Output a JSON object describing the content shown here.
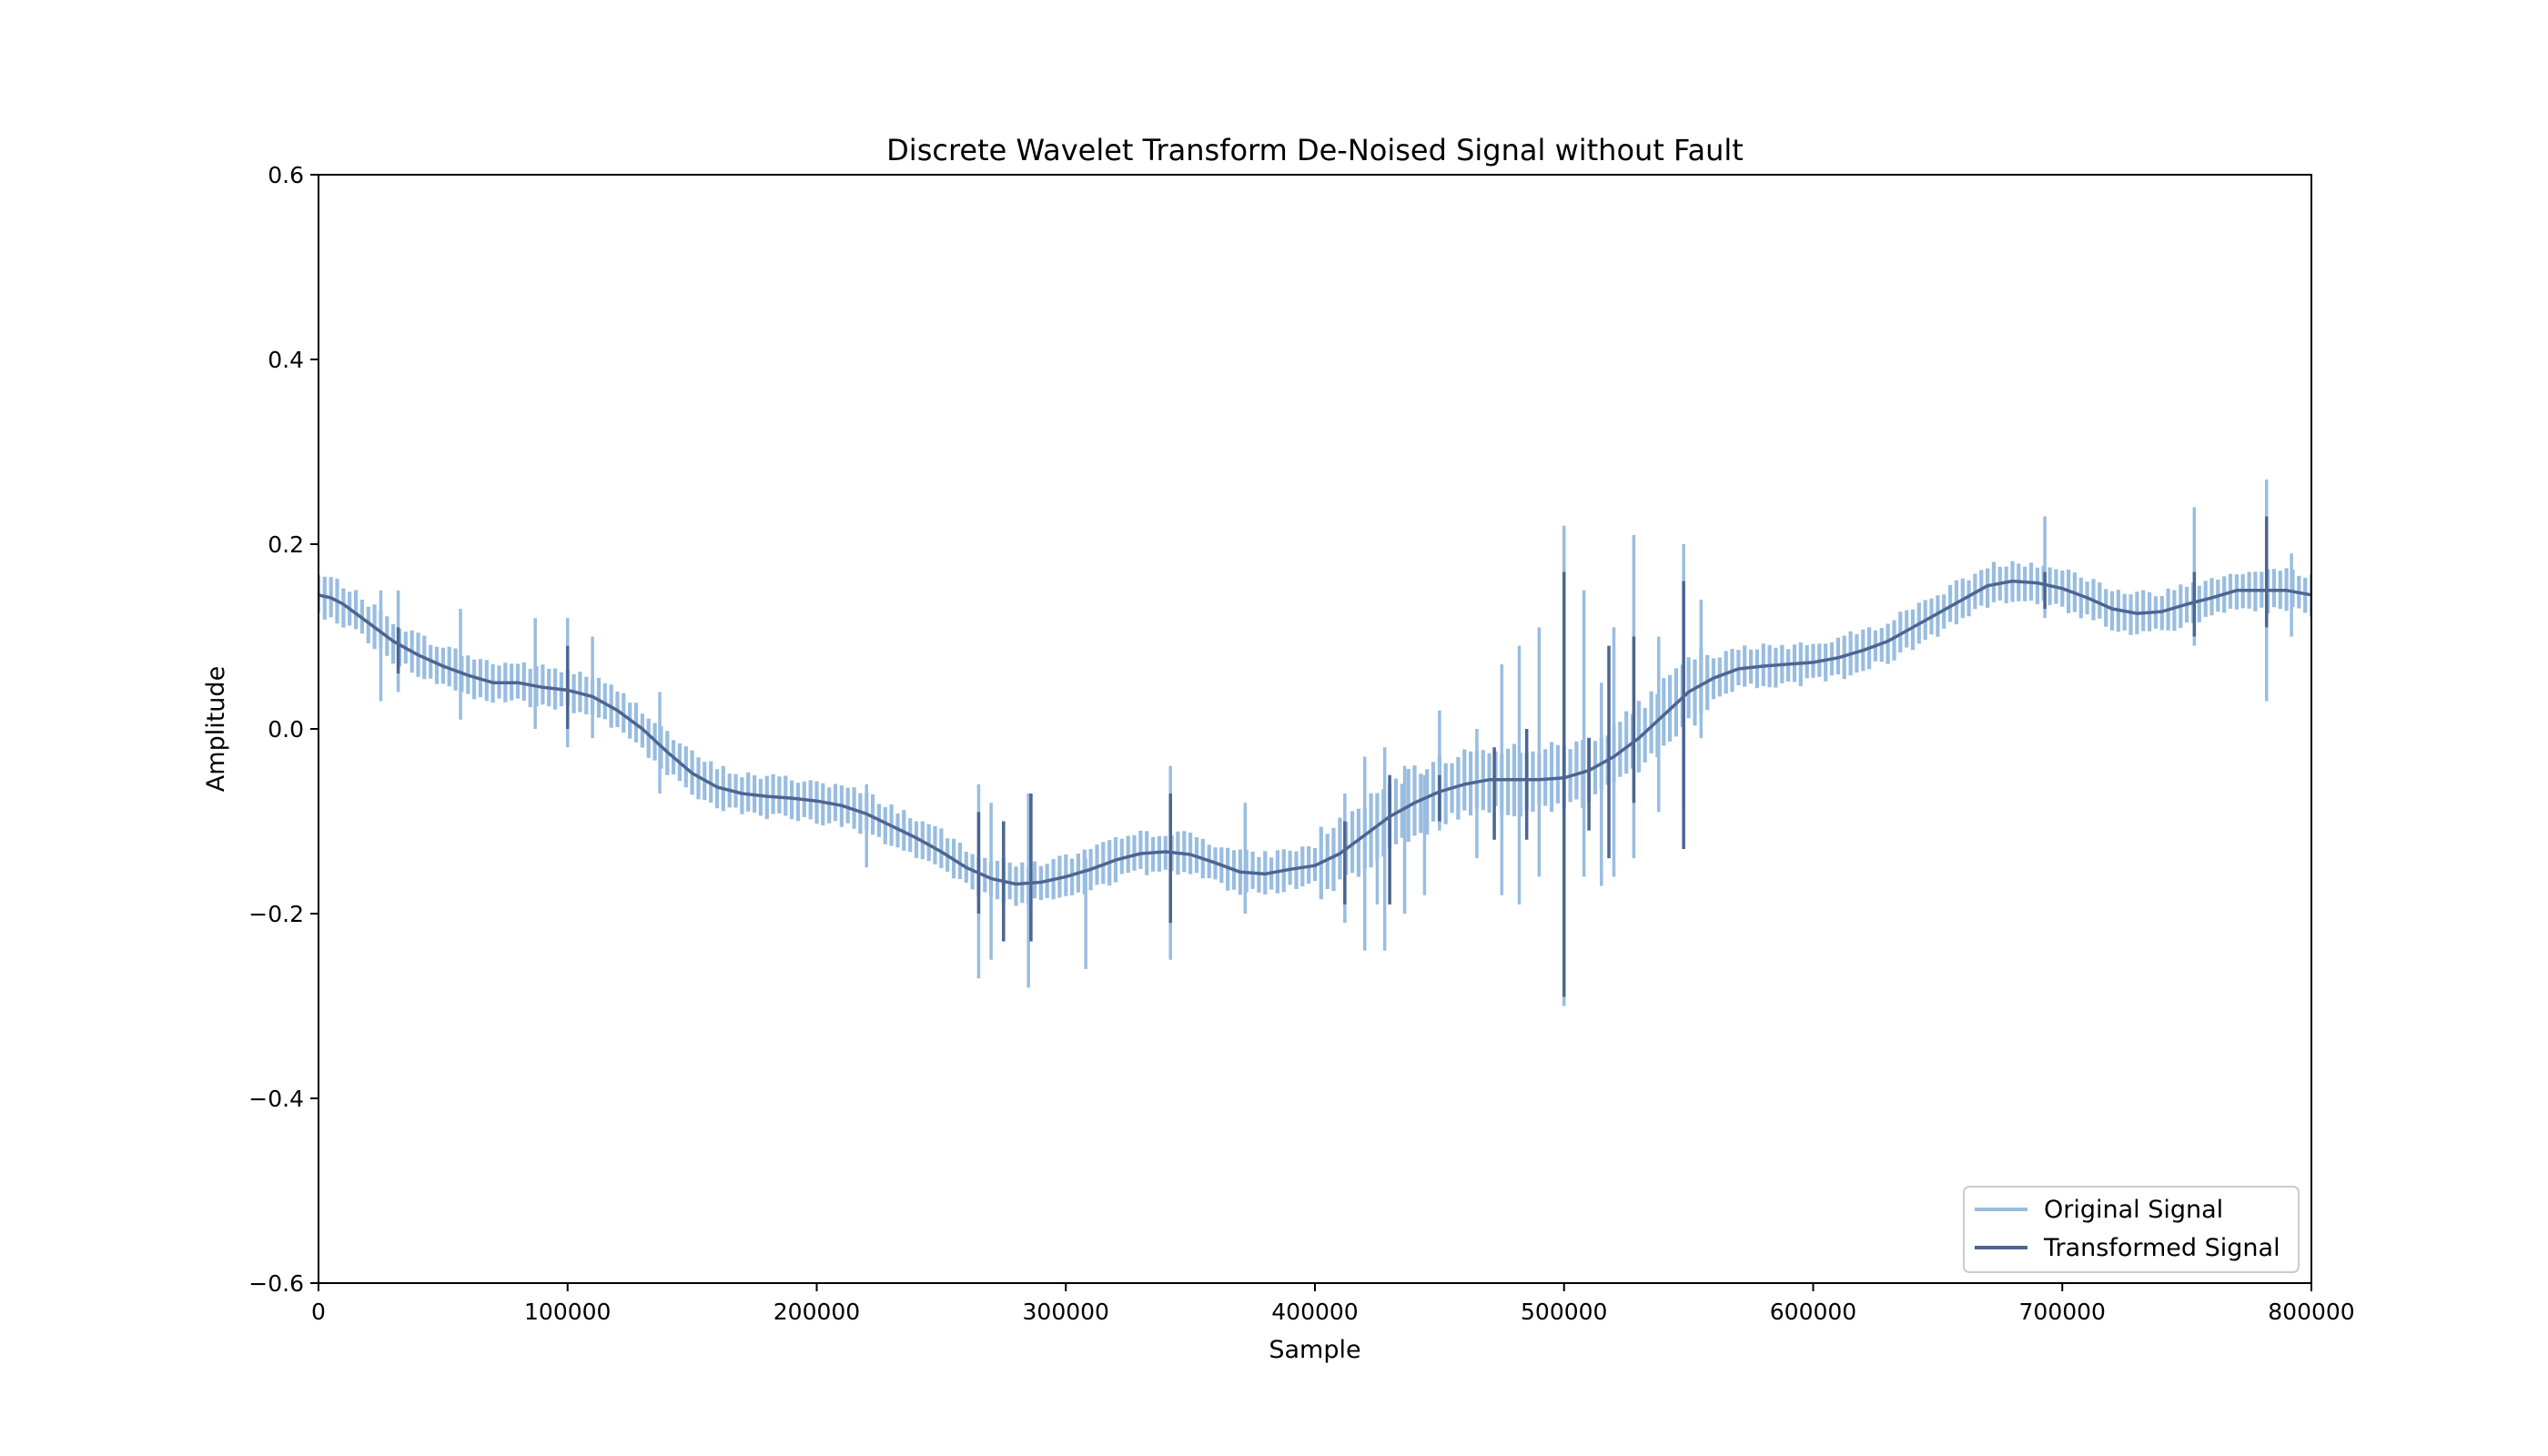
{
  "chart_data": {
    "type": "line",
    "title": "Discrete Wavelet Transform De-Noised Signal without Fault",
    "xlabel": "Sample",
    "ylabel": "Amplitude",
    "xlim": [
      0,
      800000
    ],
    "ylim": [
      -0.6,
      0.6
    ],
    "xticks": [
      0,
      100000,
      200000,
      300000,
      400000,
      500000,
      600000,
      700000,
      800000
    ],
    "xtick_labels": [
      "0",
      "100000",
      "200000",
      "300000",
      "400000",
      "500000",
      "600000",
      "700000",
      "800000"
    ],
    "yticks": [
      -0.6,
      -0.4,
      -0.2,
      0.0,
      0.2,
      0.4,
      0.6
    ],
    "ytick_labels": [
      "−0.6",
      "−0.4",
      "−0.2",
      "0.0",
      "0.2",
      "0.4",
      "0.6"
    ],
    "grid": false,
    "legend_position": "bottom-right",
    "series": [
      {
        "name": "Original Signal",
        "color": "#99bde0",
        "band_halfwidth": 0.022,
        "envelope_x": [
          0,
          20000,
          40000,
          60000,
          80000,
          100000,
          120000,
          140000,
          160000,
          180000,
          200000,
          220000,
          240000,
          260000,
          280000,
          300000,
          320000,
          340000,
          360000,
          380000,
          400000,
          420000,
          440000,
          460000,
          480000,
          500000,
          520000,
          540000,
          560000,
          580000,
          600000,
          620000,
          640000,
          660000,
          680000,
          700000,
          720000,
          740000,
          760000,
          780000,
          800000
        ],
        "spikes": [
          {
            "x": 25000,
            "min": 0.03,
            "max": 0.15
          },
          {
            "x": 32000,
            "min": 0.04,
            "max": 0.15
          },
          {
            "x": 57000,
            "min": 0.01,
            "max": 0.13
          },
          {
            "x": 87000,
            "min": 0.0,
            "max": 0.12
          },
          {
            "x": 100000,
            "min": -0.02,
            "max": 0.12
          },
          {
            "x": 110000,
            "min": -0.01,
            "max": 0.1
          },
          {
            "x": 137000,
            "min": -0.07,
            "max": 0.04
          },
          {
            "x": 220000,
            "min": -0.15,
            "max": -0.06
          },
          {
            "x": 265000,
            "min": -0.27,
            "max": -0.06
          },
          {
            "x": 270000,
            "min": -0.25,
            "max": -0.08
          },
          {
            "x": 285000,
            "min": -0.28,
            "max": -0.07
          },
          {
            "x": 308000,
            "min": -0.26,
            "max": -0.14
          },
          {
            "x": 342000,
            "min": -0.25,
            "max": -0.04
          },
          {
            "x": 372000,
            "min": -0.2,
            "max": -0.08
          },
          {
            "x": 412000,
            "min": -0.21,
            "max": -0.07
          },
          {
            "x": 420000,
            "min": -0.24,
            "max": -0.03
          },
          {
            "x": 425000,
            "min": -0.19,
            "max": -0.08
          },
          {
            "x": 428000,
            "min": -0.24,
            "max": -0.02
          },
          {
            "x": 436000,
            "min": -0.2,
            "max": -0.04
          },
          {
            "x": 444000,
            "min": -0.18,
            "max": -0.05
          },
          {
            "x": 450000,
            "min": -0.11,
            "max": 0.02
          },
          {
            "x": 465000,
            "min": -0.14,
            "max": 0.0
          },
          {
            "x": 475000,
            "min": -0.18,
            "max": 0.07
          },
          {
            "x": 482000,
            "min": -0.19,
            "max": 0.09
          },
          {
            "x": 490000,
            "min": -0.16,
            "max": 0.11
          },
          {
            "x": 500000,
            "min": -0.3,
            "max": 0.22
          },
          {
            "x": 508000,
            "min": -0.16,
            "max": 0.15
          },
          {
            "x": 515000,
            "min": -0.17,
            "max": 0.05
          },
          {
            "x": 520000,
            "min": -0.16,
            "max": 0.11
          },
          {
            "x": 528000,
            "min": -0.14,
            "max": 0.21
          },
          {
            "x": 538000,
            "min": -0.09,
            "max": 0.1
          },
          {
            "x": 548000,
            "min": -0.09,
            "max": 0.2
          },
          {
            "x": 555000,
            "min": -0.01,
            "max": 0.14
          },
          {
            "x": 693000,
            "min": 0.12,
            "max": 0.23
          },
          {
            "x": 753000,
            "min": 0.09,
            "max": 0.24
          },
          {
            "x": 782000,
            "min": 0.03,
            "max": 0.27
          },
          {
            "x": 792000,
            "min": 0.1,
            "max": 0.19
          }
        ]
      },
      {
        "name": "Transformed Signal",
        "color": "#4c6591",
        "x": [
          0,
          5000,
          10000,
          20000,
          30000,
          40000,
          50000,
          60000,
          70000,
          80000,
          90000,
          100000,
          110000,
          120000,
          130000,
          140000,
          150000,
          160000,
          170000,
          180000,
          190000,
          200000,
          210000,
          220000,
          230000,
          240000,
          250000,
          260000,
          270000,
          280000,
          290000,
          300000,
          310000,
          320000,
          330000,
          340000,
          350000,
          360000,
          370000,
          380000,
          390000,
          400000,
          410000,
          420000,
          430000,
          440000,
          450000,
          460000,
          470000,
          480000,
          490000,
          500000,
          510000,
          520000,
          530000,
          540000,
          550000,
          560000,
          570000,
          580000,
          590000,
          600000,
          610000,
          620000,
          630000,
          640000,
          650000,
          660000,
          670000,
          680000,
          690000,
          700000,
          710000,
          720000,
          730000,
          740000,
          750000,
          760000,
          770000,
          780000,
          790000,
          800000
        ],
        "y": [
          0.145,
          0.142,
          0.135,
          0.115,
          0.095,
          0.08,
          0.068,
          0.058,
          0.05,
          0.05,
          0.045,
          0.042,
          0.035,
          0.02,
          0.0,
          -0.025,
          -0.048,
          -0.063,
          -0.07,
          -0.073,
          -0.075,
          -0.078,
          -0.083,
          -0.092,
          -0.105,
          -0.118,
          -0.133,
          -0.15,
          -0.162,
          -0.168,
          -0.166,
          -0.16,
          -0.152,
          -0.142,
          -0.135,
          -0.133,
          -0.136,
          -0.145,
          -0.155,
          -0.157,
          -0.152,
          -0.148,
          -0.135,
          -0.115,
          -0.095,
          -0.08,
          -0.068,
          -0.06,
          -0.055,
          -0.055,
          -0.055,
          -0.053,
          -0.045,
          -0.03,
          -0.01,
          0.015,
          0.04,
          0.055,
          0.065,
          0.068,
          0.07,
          0.072,
          0.077,
          0.085,
          0.095,
          0.11,
          0.125,
          0.14,
          0.155,
          0.16,
          0.158,
          0.152,
          0.142,
          0.13,
          0.125,
          0.127,
          0.135,
          0.142,
          0.15,
          0.15,
          0.15,
          0.145
        ],
        "spikes": [
          {
            "x": 32000,
            "min": 0.06,
            "max": 0.11
          },
          {
            "x": 100000,
            "min": 0.0,
            "max": 0.09
          },
          {
            "x": 265000,
            "min": -0.2,
            "max": -0.09
          },
          {
            "x": 275000,
            "min": -0.23,
            "max": -0.1
          },
          {
            "x": 286000,
            "min": -0.23,
            "max": -0.07
          },
          {
            "x": 342000,
            "min": -0.21,
            "max": -0.07
          },
          {
            "x": 412000,
            "min": -0.19,
            "max": -0.1
          },
          {
            "x": 430000,
            "min": -0.19,
            "max": -0.05
          },
          {
            "x": 450000,
            "min": -0.1,
            "max": -0.05
          },
          {
            "x": 472000,
            "min": -0.12,
            "max": -0.02
          },
          {
            "x": 485000,
            "min": -0.12,
            "max": 0.0
          },
          {
            "x": 500000,
            "min": -0.29,
            "max": 0.17
          },
          {
            "x": 510000,
            "min": -0.11,
            "max": -0.01
          },
          {
            "x": 518000,
            "min": -0.14,
            "max": 0.09
          },
          {
            "x": 528000,
            "min": -0.08,
            "max": 0.1
          },
          {
            "x": 548000,
            "min": -0.13,
            "max": 0.16
          },
          {
            "x": 693000,
            "min": 0.13,
            "max": 0.17
          },
          {
            "x": 753000,
            "min": 0.1,
            "max": 0.17
          },
          {
            "x": 782000,
            "min": 0.11,
            "max": 0.23
          }
        ]
      }
    ]
  }
}
